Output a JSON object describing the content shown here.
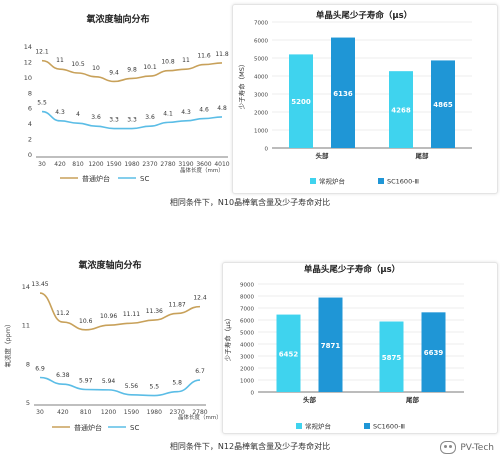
{
  "captions": {
    "top": "相同条件下，N10晶棒氧含量及少子寿命对比",
    "bottom": "相同条件下，N12晶棒氧含量及少子寿命对比"
  },
  "watermark": {
    "text": "PV-Tech",
    "icon": "wechat-icon"
  },
  "colors": {
    "gold": "#c8a15a",
    "blue": "#5bbde6",
    "cyan": "#3fd3ee",
    "darkblue": "#1f96d6",
    "grid": "#e6e6e6",
    "axis": "#555555"
  },
  "chart_data": [
    {
      "id": "c1",
      "type": "line",
      "title": "氧浓度轴向分布",
      "xlabel": "晶体长度（mm）",
      "ylabel": "",
      "categories": [
        "30",
        "420",
        "810",
        "1200",
        "1590",
        "1980",
        "2370",
        "2780",
        "3190",
        "3600",
        "4010"
      ],
      "yticks": [
        0,
        2,
        4,
        6,
        8,
        10,
        12,
        14
      ],
      "ylim": [
        0,
        14
      ],
      "series": [
        {
          "name": "普通炉台",
          "values": [
            12.1,
            11,
            10.5,
            10,
            9.4,
            9.8,
            10.1,
            10.8,
            11,
            11.6,
            11.8
          ],
          "labels": [
            "12.1",
            "11",
            "10.5",
            "10",
            "9.4",
            "9.8",
            "10.1",
            "10.8",
            "11",
            "11.6",
            "11.8"
          ]
        },
        {
          "name": "SC",
          "values": [
            5.5,
            4.3,
            4,
            3.6,
            3.3,
            3.3,
            3.6,
            4.1,
            4.3,
            4.6,
            4.8
          ],
          "labels": [
            "5.5",
            "4.3",
            "4",
            "3.6",
            "3.3",
            "3.3",
            "3.6",
            "4.1",
            "4.3",
            "4.6",
            "4.8"
          ]
        }
      ],
      "legend": "bottom"
    },
    {
      "id": "c2",
      "type": "bar",
      "title": "单晶头尾少子寿命（μs）",
      "ylabel": "少子寿命（MS）",
      "categories": [
        "头部",
        "尾部"
      ],
      "yticks": [
        0,
        1000,
        2000,
        3000,
        4000,
        5000,
        6000,
        7000
      ],
      "ylim": [
        0,
        7000
      ],
      "series": [
        {
          "name": "常规炉台",
          "values": [
            5200,
            4268
          ],
          "labels": [
            "5200",
            "4268"
          ]
        },
        {
          "name": "SC1600-Ⅲ",
          "values": [
            6136,
            4865
          ],
          "labels": [
            "6136",
            "4865"
          ]
        }
      ],
      "legend": "bottom"
    },
    {
      "id": "c3",
      "type": "line",
      "title": "氧浓度轴向分布",
      "xlabel": "晶体长度（mm）",
      "ylabel": "氧浓度（ppm）",
      "categories": [
        "30",
        "420",
        "810",
        "1200",
        "1590",
        "1980",
        "2370",
        "2780"
      ],
      "yticks": [
        5,
        8,
        11,
        14
      ],
      "ylim": [
        5,
        14
      ],
      "series": [
        {
          "name": "普通炉台",
          "values": [
            13.45,
            11.2,
            10.6,
            10.96,
            11.11,
            11.36,
            11.87,
            12.4
          ],
          "labels": [
            "13.45",
            "11.2",
            "10.6",
            "10.96",
            "11.11",
            "11.36",
            "11.87",
            "12.4"
          ]
        },
        {
          "name": "SC",
          "values": [
            6.9,
            6.38,
            5.97,
            5.94,
            5.56,
            5.5,
            5.8,
            6.7
          ],
          "labels": [
            "6.9",
            "6.38",
            "5.97",
            "5.94",
            "5.56",
            "5.5",
            "5.8",
            "6.7"
          ]
        }
      ],
      "legend": "bottom"
    },
    {
      "id": "c4",
      "type": "bar",
      "title": "单晶头尾少子寿命（μs）",
      "ylabel": "少子寿命（μs）",
      "categories": [
        "头部",
        "尾部"
      ],
      "yticks": [
        0,
        1000,
        2000,
        3000,
        4000,
        5000,
        6000,
        7000,
        8000,
        9000
      ],
      "ylim": [
        0,
        9000
      ],
      "series": [
        {
          "name": "常规炉台",
          "values": [
            6452,
            5875
          ],
          "labels": [
            "6452",
            "5875"
          ]
        },
        {
          "name": "SC1600-Ⅲ",
          "values": [
            7871,
            6639
          ],
          "labels": [
            "7871",
            "6639"
          ]
        }
      ],
      "legend": "bottom"
    }
  ]
}
